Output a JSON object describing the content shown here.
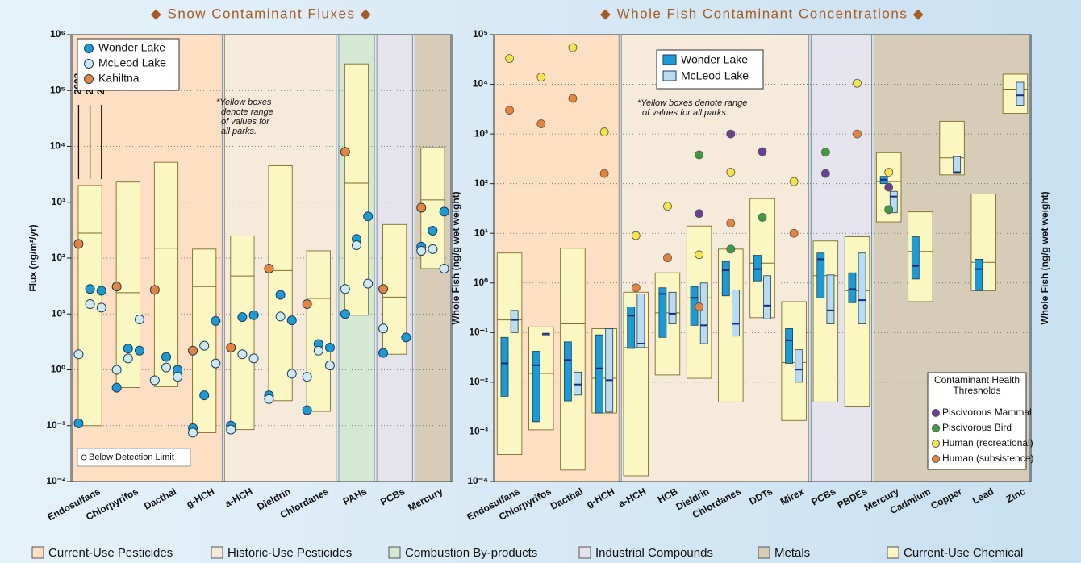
{
  "chart_data": [
    {
      "type": "log-range-points",
      "title": "◆ Snow Contaminant Fluxes ◆",
      "ylabel": "Flux (ng/m²/yr)",
      "categories": [
        "Endosulfans",
        "Chlorpyrifos",
        "Dacthal",
        "g-HCH",
        "a-HCH",
        "Dieldrin",
        "Chlordanes",
        "PAHs",
        "PCBs",
        "Mercury"
      ],
      "category_groups": [
        "Current-Use Pesticides",
        "Current-Use Pesticides",
        "Current-Use Pesticides",
        "Current-Use Pesticides",
        "Historic-Use Pesticides",
        "Historic-Use Pesticides",
        "Historic-Use Pesticides",
        "Combustion By-products",
        "Industrial Compounds",
        "Metals"
      ],
      "log_scale": true,
      "grid": true,
      "ylim": [
        0.01,
        1000000
      ],
      "yticks": [
        {
          "value": 0.01,
          "label": "10⁻²"
        },
        {
          "value": 0.1,
          "label": "10⁻¹"
        },
        {
          "value": 1,
          "label": "10⁰"
        },
        {
          "value": 10,
          "label": "10¹"
        },
        {
          "value": 100,
          "label": "10²"
        },
        {
          "value": 1000,
          "label": "10³"
        },
        {
          "value": 10000,
          "label": "10⁴"
        },
        {
          "value": 100000,
          "label": "10⁵"
        },
        {
          "value": 1000000,
          "label": "10⁶"
        }
      ],
      "range_boxes": [
        [
          0.1,
          2000,
          280
        ],
        [
          0.48,
          2300,
          24
        ],
        [
          0.5,
          5200,
          150
        ],
        [
          0.075,
          145,
          31
        ],
        [
          0.085,
          250,
          48
        ],
        [
          0.28,
          4500,
          60
        ],
        [
          0.18,
          135,
          19
        ],
        [
          9.5,
          300000,
          2200
        ],
        [
          1.9,
          400,
          20
        ],
        [
          65,
          9500,
          1100
        ]
      ],
      "year_labels": [
        "2003",
        "2004",
        "2005"
      ],
      "annotation": [
        "*Yellow boxes",
        "denote range",
        "of values for",
        "all parks."
      ],
      "note": "Below Detection Limit",
      "series": [
        {
          "name": "Wonder Lake",
          "color": "#1b9ad6",
          "values": [
            [
              0.11,
              28,
              26
            ],
            [
              0.48,
              2.4,
              2.2
            ],
            [
              null,
              1.7,
              1.0
            ],
            [
              0.09,
              0.35,
              7.5
            ],
            [
              0.1,
              8.8,
              9.5
            ],
            [
              0.35,
              22,
              7.7
            ],
            [
              0.19,
              2.9,
              2.5
            ],
            [
              10,
              220,
              560
            ],
            [
              2,
              null,
              3.8
            ],
            [
              160,
              310,
              680
            ]
          ]
        },
        {
          "name": "McLeod Lake",
          "color": "#cfe8f7",
          "values": [
            [
              1.9,
              15,
              13
            ],
            [
              1.0,
              1.6,
              8
            ],
            [
              0.65,
              1.1,
              0.75
            ],
            [
              0.075,
              2.7,
              1.3
            ],
            [
              0.085,
              1.9,
              1.6
            ],
            [
              0.3,
              9,
              0.85
            ],
            [
              0.75,
              2.2,
              1.2
            ],
            [
              28,
              170,
              35
            ],
            [
              5.5,
              null,
              null
            ],
            [
              135,
              145,
              65
            ]
          ]
        },
        {
          "name": "Kahiltna",
          "color": "#e8833a",
          "values": [
            [
              180,
              null,
              null
            ],
            [
              31,
              null,
              null
            ],
            [
              27,
              null,
              null
            ],
            [
              2.2,
              null,
              null
            ],
            [
              2.5,
              null,
              null
            ],
            [
              65,
              null,
              null
            ],
            [
              15,
              null,
              null
            ],
            [
              8000,
              null,
              null
            ],
            [
              28,
              null,
              null
            ],
            [
              800,
              null,
              null
            ]
          ]
        }
      ]
    },
    {
      "type": "log-range-boxes",
      "title": "◆ Whole Fish Contaminant Concentrations ◆",
      "ylabel": "Whole Fish (ng/g wet weight)",
      "categories": [
        "Endosulfans",
        "Chlorpyrifos",
        "Dacthal",
        "g-HCH",
        "a-HCH",
        "HCB",
        "Dieldrin",
        "Chlordanes",
        "DDTs",
        "Mirex",
        "PCBs",
        "PBDEs",
        "Mercury",
        "Cadmium",
        "Copper",
        "Lead",
        "Zinc"
      ],
      "category_groups": [
        "Current-Use Pesticides",
        "Current-Use Pesticides",
        "Current-Use Pesticides",
        "Current-Use Pesticides",
        "Historic-Use Pesticides",
        "Historic-Use Pesticides",
        "Historic-Use Pesticides",
        "Historic-Use Pesticides",
        "Historic-Use Pesticides",
        "Historic-Use Pesticides",
        "Industrial Compounds",
        "Industrial Compounds",
        "Metals",
        "Metals",
        "Metals",
        "Metals",
        "Metals"
      ],
      "log_scale": true,
      "grid": true,
      "ylim": [
        0.0001,
        100000
      ],
      "yticks": [
        {
          "value": 0.0001,
          "label": "10⁻⁴"
        },
        {
          "value": 0.001,
          "label": "10⁻³"
        },
        {
          "value": 0.01,
          "label": "10⁻²"
        },
        {
          "value": 0.1,
          "label": "10⁻¹"
        },
        {
          "value": 1,
          "label": "10⁰"
        },
        {
          "value": 10,
          "label": "10¹"
        },
        {
          "value": 100,
          "label": "10²"
        },
        {
          "value": 1000,
          "label": "10³"
        },
        {
          "value": 10000,
          "label": "10⁴"
        },
        {
          "value": 100000,
          "label": "10⁵"
        }
      ],
      "range_boxes": [
        [
          0.00035,
          4,
          0.18
        ],
        [
          0.0011,
          0.13,
          0.015
        ],
        [
          0.00017,
          5,
          0.15
        ],
        [
          0.0024,
          0.12,
          0.012
        ],
        [
          0.00013,
          0.65,
          0.05
        ],
        [
          0.014,
          1.6,
          0.25
        ],
        [
          0.012,
          14,
          0.5
        ],
        [
          0.004,
          4.8,
          0.6
        ],
        [
          0.2,
          50,
          2.5
        ],
        [
          0.0017,
          0.42,
          0.025
        ],
        [
          0.004,
          7,
          1.4
        ],
        [
          0.0033,
          8.5,
          0.7
        ],
        [
          17,
          420,
          110
        ],
        [
          0.42,
          27,
          4.3
        ],
        [
          150,
          1800,
          330
        ],
        [
          0.7,
          62,
          2.6
        ],
        [
          2600,
          16000,
          8000
        ]
      ],
      "annotation": [
        "*Yellow boxes denote range",
        "of values for all parks."
      ],
      "series": [
        {
          "name": "Wonder Lake",
          "color": "#1b9ad6",
          "values": [
            [
              0.0052,
              0.08,
              0.024
            ],
            [
              0.0016,
              0.042,
              0.022
            ],
            [
              0.0042,
              0.065,
              0.028
            ],
            [
              0.0024,
              0.09,
              0.019
            ],
            [
              0.048,
              0.33,
              0.22
            ],
            [
              0.08,
              0.8,
              0.6
            ],
            [
              0.14,
              0.85,
              0.5
            ],
            [
              0.55,
              2.7,
              1.8
            ],
            [
              1.1,
              3.6,
              1.9
            ],
            [
              0.024,
              0.12,
              0.07
            ],
            [
              0.5,
              4,
              3
            ],
            [
              0.4,
              1.6,
              0.75
            ],
            [
              100,
              140,
              120
            ],
            [
              1.2,
              8.5,
              2.2
            ],
            null,
            [
              0.7,
              3,
              1.9
            ],
            null
          ]
        },
        {
          "name": "McLeod Lake",
          "color": "#b9dcf4",
          "values": [
            [
              0.1,
              0.28,
              0.18
            ],
            [
              0.095,
              0.095,
              0.095
            ],
            [
              0.0055,
              0.016,
              0.009
            ],
            [
              0.0025,
              0.12,
              0.011
            ],
            [
              0.05,
              0.6,
              0.06
            ],
            [
              0.15,
              0.65,
              0.24
            ],
            [
              0.06,
              1.0,
              0.14
            ],
            [
              0.085,
              0.72,
              0.15
            ],
            [
              0.19,
              1.4,
              0.35
            ],
            [
              0.01,
              0.045,
              0.018
            ],
            [
              0.15,
              1.45,
              0.28
            ],
            [
              0.15,
              4,
              0.45
            ],
            [
              26,
              70,
              55
            ],
            null,
            [
              160,
              350,
              170
            ],
            null,
            [
              3800,
              11000,
              6000
            ]
          ]
        }
      ],
      "thresholds": {
        "title": [
          "Contaminant Health",
          "Thresholds"
        ],
        "series": [
          {
            "name": "Piscivorous Mammal",
            "color": "#6b3f92",
            "values": [
              null,
              null,
              null,
              null,
              null,
              null,
              25,
              1000,
              440,
              null,
              160,
              null,
              85,
              null,
              null,
              null,
              null
            ]
          },
          {
            "name": "Piscivorous Bird",
            "color": "#3f9a44",
            "values": [
              null,
              null,
              null,
              null,
              null,
              null,
              380,
              4.8,
              21,
              null,
              430,
              null,
              30,
              null,
              null,
              null,
              null
            ]
          },
          {
            "name": "Human (recreational)",
            "color": "#f5e54a",
            "values": [
              33000,
              14000,
              55000,
              1100,
              9,
              35,
              3.7,
              170,
              null,
              110,
              null,
              10500,
              170,
              null,
              null,
              null,
              null
            ]
          },
          {
            "name": "Human (subsistence)",
            "color": "#e8833a",
            "values": [
              3000,
              1600,
              5200,
              160,
              0.8,
              3.2,
              0.33,
              16,
              null,
              10,
              null,
              1000,
              null,
              null,
              null,
              null,
              null
            ]
          }
        ]
      }
    }
  ],
  "legend": [
    {
      "name": "Current-Use Pesticides",
      "color": "#fde0c4"
    },
    {
      "name": "Historic-Use Pesticides",
      "color": "#f6eadb"
    },
    {
      "name": "Combustion By-products",
      "color": "#d5e8d4"
    },
    {
      "name": "Industrial Compounds",
      "color": "#e5e4ec"
    },
    {
      "name": "Metals",
      "color": "#d6ccb8"
    },
    {
      "name": "Current-Use Chemical",
      "color": "#fbf7c2"
    }
  ]
}
